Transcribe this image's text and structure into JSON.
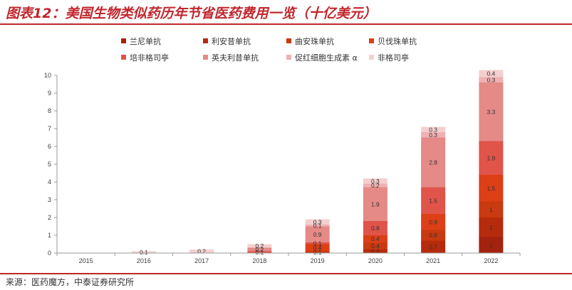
{
  "figure_title": "图表12：美国生物类似药历年节省医药费用一览（十亿美元）",
  "source": "来源：医药魔方，中泰证券研究所",
  "chart_data": {
    "type": "bar",
    "stacked": true,
    "categories": [
      "2015",
      "2016",
      "2017",
      "2018",
      "2019",
      "2020",
      "2021",
      "2022"
    ],
    "ylim": [
      0,
      10
    ],
    "yticks": [
      "0",
      "1",
      "2",
      "3",
      "4",
      "5",
      "6",
      "7",
      "8",
      "9",
      "10"
    ],
    "legend_position": "top",
    "grid": false,
    "series": [
      {
        "name": "兰尼单抗",
        "color": "#a3230f",
        "values": [
          0,
          0,
          0,
          0,
          0,
          0,
          0,
          0.9
        ],
        "labels": [
          "",
          "",
          "",
          "",
          "",
          "",
          "",
          "1"
        ]
      },
      {
        "name": "利安昔单抗",
        "color": "#b52b0c",
        "values": [
          0,
          0,
          0,
          0,
          0,
          0.2,
          0.7,
          1.1
        ],
        "labels": [
          "",
          "",
          "",
          "",
          "",
          "0.2",
          "0.7",
          "1"
        ]
      },
      {
        "name": "曲安珠单抗",
        "color": "#c93a10",
        "values": [
          0,
          0,
          0,
          0,
          0.1,
          0.4,
          0.6,
          0.9
        ],
        "labels": [
          "",
          "",
          "",
          "",
          "0.1",
          "0.4",
          "0.6",
          "1"
        ]
      },
      {
        "name": "贝伐珠单抗",
        "color": "#dd3f16",
        "values": [
          0,
          0,
          0,
          0,
          0.4,
          0.4,
          0.9,
          1.5
        ],
        "labels": [
          "",
          "",
          "",
          "",
          "0.4",
          "0.4",
          "0.9",
          "1.5"
        ]
      },
      {
        "name": "培非格司亭",
        "color": "#e0544a",
        "values": [
          0,
          0,
          0,
          0.1,
          0.1,
          0.8,
          1.5,
          1.9
        ],
        "labels": [
          "",
          "",
          "",
          "0.1",
          "0.1",
          "0.8",
          "1.5",
          "1.9"
        ]
      },
      {
        "name": "英夫利昔单抗",
        "color": "#e58a86",
        "values": [
          0,
          0,
          0,
          0.2,
          0.9,
          1.9,
          2.8,
          3.3
        ],
        "labels": [
          "",
          "",
          "",
          "0.2",
          "0.9",
          "1.9",
          "2.8",
          "3.3"
        ]
      },
      {
        "name": "促红细胞生成素 α",
        "color": "#efb1b2",
        "values": [
          0,
          0,
          0,
          0,
          0.1,
          0.2,
          0.3,
          0.3
        ],
        "labels": [
          "",
          "",
          "",
          "",
          "0.1",
          "0.2",
          "0.3",
          "0.3"
        ]
      },
      {
        "name": "非格司亭",
        "color": "#f4cfcf",
        "values": [
          0,
          0.1,
          0.2,
          0.2,
          0.3,
          0.3,
          0.3,
          0.4
        ],
        "labels": [
          "",
          "0.1",
          "0.2",
          "0.2",
          "0.3",
          "0.3",
          "0.3",
          "0.4"
        ]
      }
    ]
  }
}
